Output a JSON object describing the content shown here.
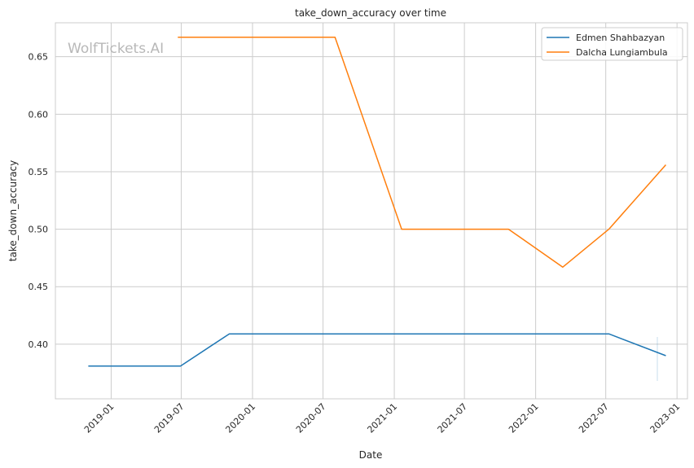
{
  "chart_data": {
    "type": "line",
    "title": "take_down_accuracy over time",
    "xlabel": "Date",
    "ylabel": "take_down_accuracy",
    "watermark": "WolfTickets.AI",
    "grid": true,
    "legend_position": "top-right",
    "x_range": [
      "2018-08-10",
      "2023-01-28"
    ],
    "ylim": [
      0.3525,
      0.6795
    ],
    "x_ticks": [
      "2019-01-01",
      "2019-07-01",
      "2020-01-01",
      "2020-07-01",
      "2021-01-01",
      "2021-07-01",
      "2022-01-01",
      "2022-07-01",
      "2023-01-01"
    ],
    "x_tick_labels": [
      "2019-01",
      "2019-07",
      "2020-01",
      "2020-07",
      "2021-01",
      "2021-07",
      "2022-01",
      "2022-07",
      "2023-01"
    ],
    "y_ticks": [
      0.4,
      0.45,
      0.5,
      0.55,
      0.6,
      0.65
    ],
    "y_tick_labels": [
      "0.40",
      "0.45",
      "0.50",
      "0.55",
      "0.60",
      "0.65"
    ],
    "series": [
      {
        "name": "Edmen Shahbazyan",
        "color": "#1f77b4",
        "x": [
          "2018-11-03",
          "2019-06-29",
          "2019-11-02",
          "2022-07-09",
          "2022-12-03"
        ],
        "y": [
          0.381,
          0.381,
          0.409,
          0.409,
          0.39
        ]
      },
      {
        "name": "Dalcha Lungiambula",
        "color": "#ff7f0e",
        "x": [
          "2019-06-22",
          "2020-08-01",
          "2021-01-20",
          "2021-10-23",
          "2022-03-12",
          "2022-07-09",
          "2022-12-03"
        ],
        "y": [
          0.667,
          0.667,
          0.5,
          0.5,
          0.467,
          0.5,
          0.556
        ]
      }
    ]
  }
}
